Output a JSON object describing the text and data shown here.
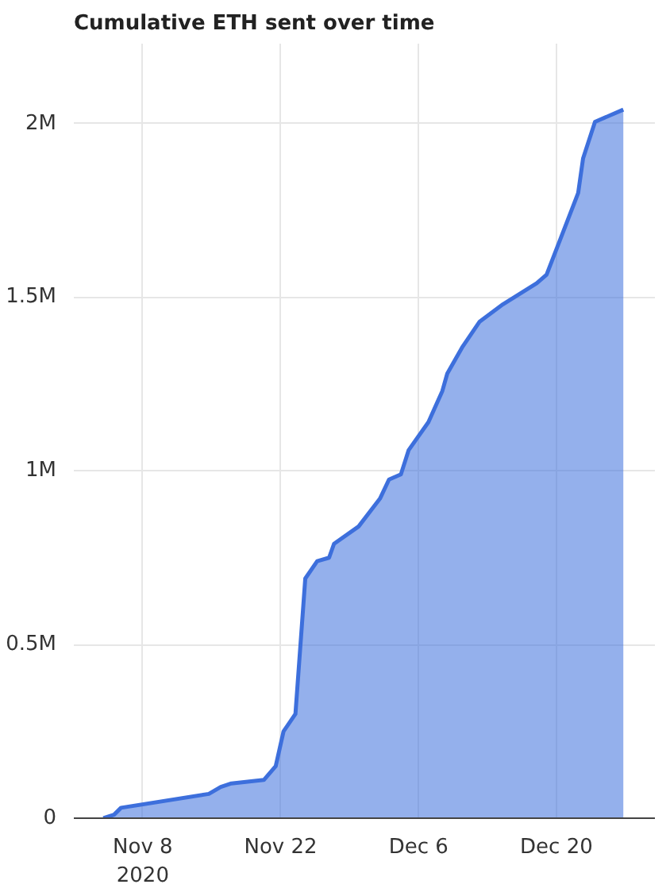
{
  "chart_data": {
    "type": "area",
    "title": "Cumulative ETH sent over time",
    "x": [
      "2020-11-04T00:00",
      "2020-11-05T02:00",
      "2020-11-05T19:00",
      "2020-11-14T17:00",
      "2020-11-15T22:00",
      "2020-11-17T00:00",
      "2020-11-20T07:00",
      "2020-11-21T12:00",
      "2020-11-22T07:00",
      "2020-11-23T12:00",
      "2020-11-24T12:00",
      "2020-11-25T17:00",
      "2020-11-26T22:00",
      "2020-11-27T10:00",
      "2020-11-29T22:00",
      "2020-12-02T02:00",
      "2020-12-03T00:00",
      "2020-12-04T05:00",
      "2020-12-05T00:00",
      "2020-12-07T00:00",
      "2020-12-08T10:00",
      "2020-12-08T22:00",
      "2020-12-10T10:00",
      "2020-12-12T05:00",
      "2020-12-14T14:00",
      "2020-12-18T00:00",
      "2020-12-19T00:00",
      "2020-12-20T17:00",
      "2020-12-22T05:00",
      "2020-12-22T17:00",
      "2020-12-23T22:00",
      "2020-12-26T19:00"
    ],
    "series": [
      {
        "color": "#3d6fdc",
        "values": [
          0,
          10000,
          30000,
          70000,
          90000,
          100000,
          110000,
          150000,
          250000,
          300000,
          690000,
          740000,
          750000,
          790000,
          840000,
          920000,
          975000,
          990000,
          1060000,
          1140000,
          1230000,
          1280000,
          1355000,
          1430000,
          1480000,
          1540000,
          1565000,
          1690000,
          1800000,
          1900000,
          2005000,
          2040000
        ]
      }
    ],
    "xlim": [
      "2020-11-01",
      "2020-12-30"
    ],
    "xticks": [
      {
        "value": "2020-11-08",
        "label": "Nov 8\n2020"
      },
      {
        "value": "2020-11-22",
        "label": "Nov 22"
      },
      {
        "value": "2020-12-06",
        "label": "Dec 6"
      },
      {
        "value": "2020-12-20",
        "label": "Dec 20"
      }
    ],
    "ylim": [
      0,
      2230000
    ],
    "yticks": [
      0,
      {
        "value": 500000,
        "label": "0.5M"
      },
      {
        "value": 1000000,
        "label": "1M"
      },
      {
        "value": 1500000,
        "label": "1.5M"
      },
      {
        "value": 2000000,
        "label": "2M"
      }
    ],
    "grid": true
  }
}
